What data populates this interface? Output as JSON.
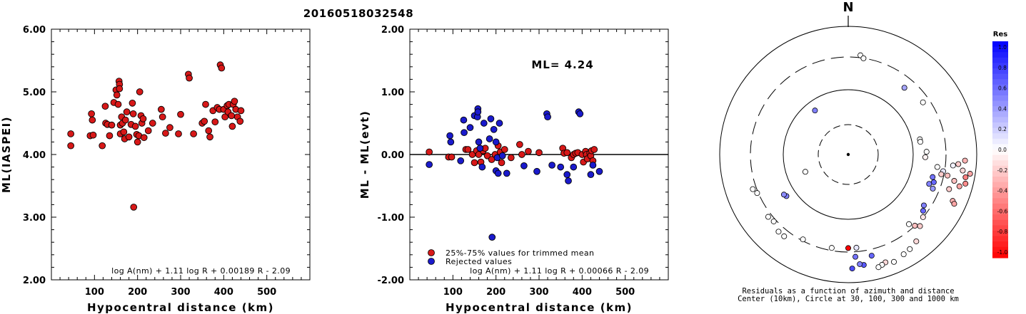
{
  "title": "20160518032548",
  "colors": {
    "red_dot": "#d71818",
    "blue_dot": "#1a1acc",
    "ink": "#000000"
  },
  "chart_data": [
    {
      "type": "scatter",
      "ylabel": "ML(IASPEI)",
      "xlabel": "Hypocentral distance (km)",
      "xlim": [
        0,
        600
      ],
      "ylim": [
        2.0,
        6.0
      ],
      "xticks": [
        "100",
        "200",
        "300",
        "400",
        "500"
      ],
      "yticks": [
        "2.00",
        "3.00",
        "4.00",
        "5.00",
        "6.00"
      ],
      "formula": "log A(nm) + 1.11 log R + 0.00189 R - 2.09",
      "series": [
        {
          "color": "red",
          "points": [
            [
              45,
              4.33
            ],
            [
              45,
              4.14
            ],
            [
              90,
              4.3
            ],
            [
              93,
              4.65
            ],
            [
              95,
              4.55
            ],
            [
              97,
              4.31
            ],
            [
              118,
              4.14
            ],
            [
              125,
              4.77
            ],
            [
              126,
              4.5
            ],
            [
              130,
              4.48
            ],
            [
              135,
              4.3
            ],
            [
              140,
              4.47
            ],
            [
              145,
              4.83
            ],
            [
              150,
              5.03
            ],
            [
              152,
              4.95
            ],
            [
              155,
              4.8
            ],
            [
              157,
              5.17
            ],
            [
              158,
              5.12
            ],
            [
              158,
              5.05
            ],
            [
              160,
              4.47
            ],
            [
              160,
              4.33
            ],
            [
              163,
              4.6
            ],
            [
              165,
              4.5
            ],
            [
              168,
              4.36
            ],
            [
              170,
              4.25
            ],
            [
              172,
              4.55
            ],
            [
              175,
              4.68
            ],
            [
              180,
              4.28
            ],
            [
              185,
              4.48
            ],
            [
              188,
              4.82
            ],
            [
              190,
              4.65
            ],
            [
              191,
              3.16
            ],
            [
              195,
              4.45
            ],
            [
              198,
              4.32
            ],
            [
              200,
              4.2
            ],
            [
              203,
              4.3
            ],
            [
              205,
              5.0
            ],
            [
              208,
              4.62
            ],
            [
              210,
              4.5
            ],
            [
              213,
              4.57
            ],
            [
              215,
              4.27
            ],
            [
              225,
              4.38
            ],
            [
              235,
              4.5
            ],
            [
              255,
              4.72
            ],
            [
              258,
              4.6
            ],
            [
              265,
              4.34
            ],
            [
              275,
              4.43
            ],
            [
              295,
              4.33
            ],
            [
              300,
              4.64
            ],
            [
              318,
              5.28
            ],
            [
              320,
              5.22
            ],
            [
              330,
              4.33
            ],
            [
              350,
              4.5
            ],
            [
              355,
              4.53
            ],
            [
              358,
              4.8
            ],
            [
              365,
              4.38
            ],
            [
              368,
              4.28
            ],
            [
              375,
              4.7
            ],
            [
              380,
              4.52
            ],
            [
              385,
              4.75
            ],
            [
              390,
              4.72
            ],
            [
              392,
              5.43
            ],
            [
              395,
              5.38
            ],
            [
              400,
              4.72
            ],
            [
              403,
              4.6
            ],
            [
              408,
              4.78
            ],
            [
              410,
              4.68
            ],
            [
              412,
              4.8
            ],
            [
              418,
              4.62
            ],
            [
              420,
              4.45
            ],
            [
              422,
              4.8
            ],
            [
              425,
              4.85
            ],
            [
              428,
              4.72
            ],
            [
              432,
              4.6
            ],
            [
              438,
              4.53
            ],
            [
              440,
              4.7
            ]
          ]
        }
      ]
    },
    {
      "type": "scatter",
      "ylabel": "ML - ML(evt)",
      "xlabel": "Hypocentral distance (km)",
      "xlim": [
        0,
        600
      ],
      "ylim": [
        -2.0,
        2.0
      ],
      "xticks": [
        "100",
        "200",
        "300",
        "400",
        "500"
      ],
      "yticks": [
        "-2.00",
        "-1.00",
        "0.00",
        "1.00",
        "2.00"
      ],
      "annotation": "ML= 4.24",
      "formula": "log A(nm) + 1.11 log R + 0.00066 R - 2.09",
      "legend": [
        {
          "label": "25%-75% values for trimmed mean",
          "color": "red"
        },
        {
          "label": "Rejected values",
          "color": "blue"
        }
      ],
      "series": [
        {
          "name": "25%-75% values for trimmed mean",
          "color": "red",
          "points": [
            [
              45,
              0.04
            ],
            [
              90,
              -0.04
            ],
            [
              97,
              -0.04
            ],
            [
              130,
              0.08
            ],
            [
              135,
              0.08
            ],
            [
              145,
              0.0
            ],
            [
              150,
              -0.13
            ],
            [
              155,
              0.06
            ],
            [
              160,
              0.0
            ],
            [
              165,
              -0.12
            ],
            [
              170,
              0.06
            ],
            [
              175,
              0.1
            ],
            [
              180,
              -0.02
            ],
            [
              190,
              -0.08
            ],
            [
              198,
              0.0
            ],
            [
              205,
              0.14
            ],
            [
              210,
              0.04
            ],
            [
              213,
              -0.13
            ],
            [
              220,
              0.08
            ],
            [
              235,
              -0.05
            ],
            [
              255,
              0.16
            ],
            [
              260,
              0.0
            ],
            [
              275,
              0.05
            ],
            [
              300,
              0.03
            ],
            [
              355,
              0.1
            ],
            [
              358,
              0.02
            ],
            [
              365,
              0.03
            ],
            [
              375,
              -0.05
            ],
            [
              380,
              0.0
            ],
            [
              385,
              0.02
            ],
            [
              390,
              0.03
            ],
            [
              400,
              0.0
            ],
            [
              403,
              -0.12
            ],
            [
              408,
              0.05
            ],
            [
              410,
              0.0
            ],
            [
              412,
              -0.07
            ],
            [
              418,
              0.02
            ],
            [
              420,
              -0.02
            ],
            [
              422,
              0.06
            ],
            [
              425,
              -0.1
            ],
            [
              428,
              0.08
            ]
          ]
        },
        {
          "name": "Rejected values",
          "color": "blue",
          "points": [
            [
              45,
              -0.16
            ],
            [
              93,
              0.3
            ],
            [
              95,
              0.2
            ],
            [
              118,
              -0.1
            ],
            [
              125,
              0.55
            ],
            [
              126,
              0.35
            ],
            [
              140,
              0.43
            ],
            [
              150,
              0.62
            ],
            [
              157,
              0.6
            ],
            [
              158,
              0.73
            ],
            [
              158,
              0.68
            ],
            [
              160,
              0.2
            ],
            [
              163,
              0.1
            ],
            [
              168,
              -0.2
            ],
            [
              172,
              0.5
            ],
            [
              185,
              0.25
            ],
            [
              188,
              0.57
            ],
            [
              191,
              -1.32
            ],
            [
              195,
              0.4
            ],
            [
              200,
              0.2
            ],
            [
              200,
              -0.26
            ],
            [
              203,
              -0.05
            ],
            [
              205,
              -0.3
            ],
            [
              208,
              0.5
            ],
            [
              215,
              -0.02
            ],
            [
              225,
              -0.3
            ],
            [
              265,
              -0.18
            ],
            [
              295,
              -0.27
            ],
            [
              318,
              0.65
            ],
            [
              320,
              0.6
            ],
            [
              330,
              -0.17
            ],
            [
              350,
              -0.2
            ],
            [
              365,
              -0.32
            ],
            [
              368,
              -0.42
            ],
            [
              380,
              -0.2
            ],
            [
              392,
              0.68
            ],
            [
              395,
              0.65
            ],
            [
              420,
              -0.32
            ],
            [
              425,
              -0.17
            ],
            [
              440,
              -0.27
            ]
          ]
        }
      ]
    },
    {
      "type": "scatter",
      "north_label": "N",
      "colorbar_title": "Res",
      "colorbar_ticks": [
        "1.0",
        "0.8",
        "0.6",
        "0.4",
        "0.2",
        "0.0",
        "-0.2",
        "-0.4",
        "-0.6",
        "-0.8",
        "-1.0"
      ],
      "caption_line1": "Residuals as a function of azimuth and distance",
      "caption_line2": "Center (10km), Circle at 30, 100, 300 and 1000 km",
      "circles_km": [
        30,
        100,
        300,
        1000
      ],
      "points": [
        {
          "az": 7,
          "r": 0.78,
          "res": 0.0
        },
        {
          "az": 9,
          "r": 0.76,
          "res": 0.0
        },
        {
          "az": 323,
          "r": 0.43,
          "res": 0.5
        },
        {
          "az": 248,
          "r": 0.36,
          "res": 0.0
        },
        {
          "az": 40,
          "r": 0.68,
          "res": 0.35
        },
        {
          "az": 55,
          "r": 0.71,
          "res": 0.0
        },
        {
          "az": 78,
          "r": 0.57,
          "res": 0.0
        },
        {
          "az": 80,
          "r": 0.57,
          "res": 0.0
        },
        {
          "az": 88,
          "r": 0.61,
          "res": 0.0
        },
        {
          "az": 92,
          "r": 0.6,
          "res": -0.05
        },
        {
          "az": 98,
          "r": 0.7,
          "res": 0.0
        },
        {
          "az": 100,
          "r": 0.75,
          "res": 0.1
        },
        {
          "az": 102,
          "r": 0.74,
          "res": -0.2
        },
        {
          "az": 104,
          "r": 0.85,
          "res": -0.25
        },
        {
          "az": 102,
          "r": 0.79,
          "res": -0.25
        },
        {
          "az": 96,
          "r": 0.82,
          "res": 0.05
        },
        {
          "az": 95,
          "r": 0.86,
          "res": -0.2
        },
        {
          "az": 93,
          "r": 0.91,
          "res": -0.3
        },
        {
          "az": 98,
          "r": 0.9,
          "res": -0.15
        },
        {
          "az": 99,
          "r": 0.96,
          "res": -0.35
        },
        {
          "az": 101,
          "r": 0.93,
          "res": -0.5
        },
        {
          "az": 104,
          "r": 0.94,
          "res": -0.45
        },
        {
          "az": 106,
          "r": 0.9,
          "res": -0.35
        },
        {
          "az": 109,
          "r": 0.83,
          "res": -0.2
        },
        {
          "az": 114,
          "r": 0.89,
          "res": -0.3
        },
        {
          "az": 115,
          "r": 0.91,
          "res": -0.35
        },
        {
          "az": 105,
          "r": 0.68,
          "res": 0.55
        },
        {
          "az": 108,
          "r": 0.7,
          "res": 0.6
        },
        {
          "az": 110,
          "r": 0.67,
          "res": 0.5
        },
        {
          "az": 112,
          "r": 0.71,
          "res": 0.4
        },
        {
          "az": 124,
          "r": 0.71,
          "res": 0.5
        },
        {
          "az": 127,
          "r": 0.73,
          "res": 0.6
        },
        {
          "az": 130,
          "r": 0.76,
          "res": -0.1
        },
        {
          "az": 135,
          "r": 0.79,
          "res": -0.2
        },
        {
          "az": 137,
          "r": 0.76,
          "res": -0.25
        },
        {
          "az": 139,
          "r": 0.72,
          "res": 0.0
        },
        {
          "az": 142,
          "r": 0.86,
          "res": -0.15
        },
        {
          "az": 147,
          "r": 0.88,
          "res": 0.0
        },
        {
          "az": 151,
          "r": 0.89,
          "res": 0.0
        },
        {
          "az": 157,
          "r": 0.91,
          "res": 0.0
        },
        {
          "az": 161,
          "r": 0.89,
          "res": -0.15
        },
        {
          "az": 163,
          "r": 0.9,
          "res": 0.0
        },
        {
          "az": 165,
          "r": 0.91,
          "res": 0.0
        },
        {
          "az": 167,
          "r": 0.81,
          "res": 0.6
        },
        {
          "az": 172,
          "r": 0.87,
          "res": 0.65
        },
        {
          "az": 174,
          "r": 0.86,
          "res": 0.5
        },
        {
          "az": 178,
          "r": 0.89,
          "res": 0.7
        },
        {
          "az": 176,
          "r": 0.8,
          "res": 0.55
        },
        {
          "az": 175,
          "r": 0.73,
          "res": 0.1
        },
        {
          "az": 180,
          "r": 0.73,
          "res": -1.0
        },
        {
          "az": 190,
          "r": 0.74,
          "res": 0.0
        },
        {
          "az": 208,
          "r": 0.75,
          "res": 0.0
        },
        {
          "az": 218,
          "r": 0.81,
          "res": 0.0
        },
        {
          "az": 222,
          "r": 0.81,
          "res": 0.0
        },
        {
          "az": 228,
          "r": 0.78,
          "res": 0.0
        },
        {
          "az": 232,
          "r": 0.79,
          "res": 0.0
        },
        {
          "az": 236,
          "r": 0.58,
          "res": 0.5
        },
        {
          "az": 238,
          "r": 0.59,
          "res": 0.45
        },
        {
          "az": 247,
          "r": 0.77,
          "res": 0.0
        },
        {
          "az": 250,
          "r": 0.79,
          "res": 0.0
        }
      ]
    }
  ]
}
